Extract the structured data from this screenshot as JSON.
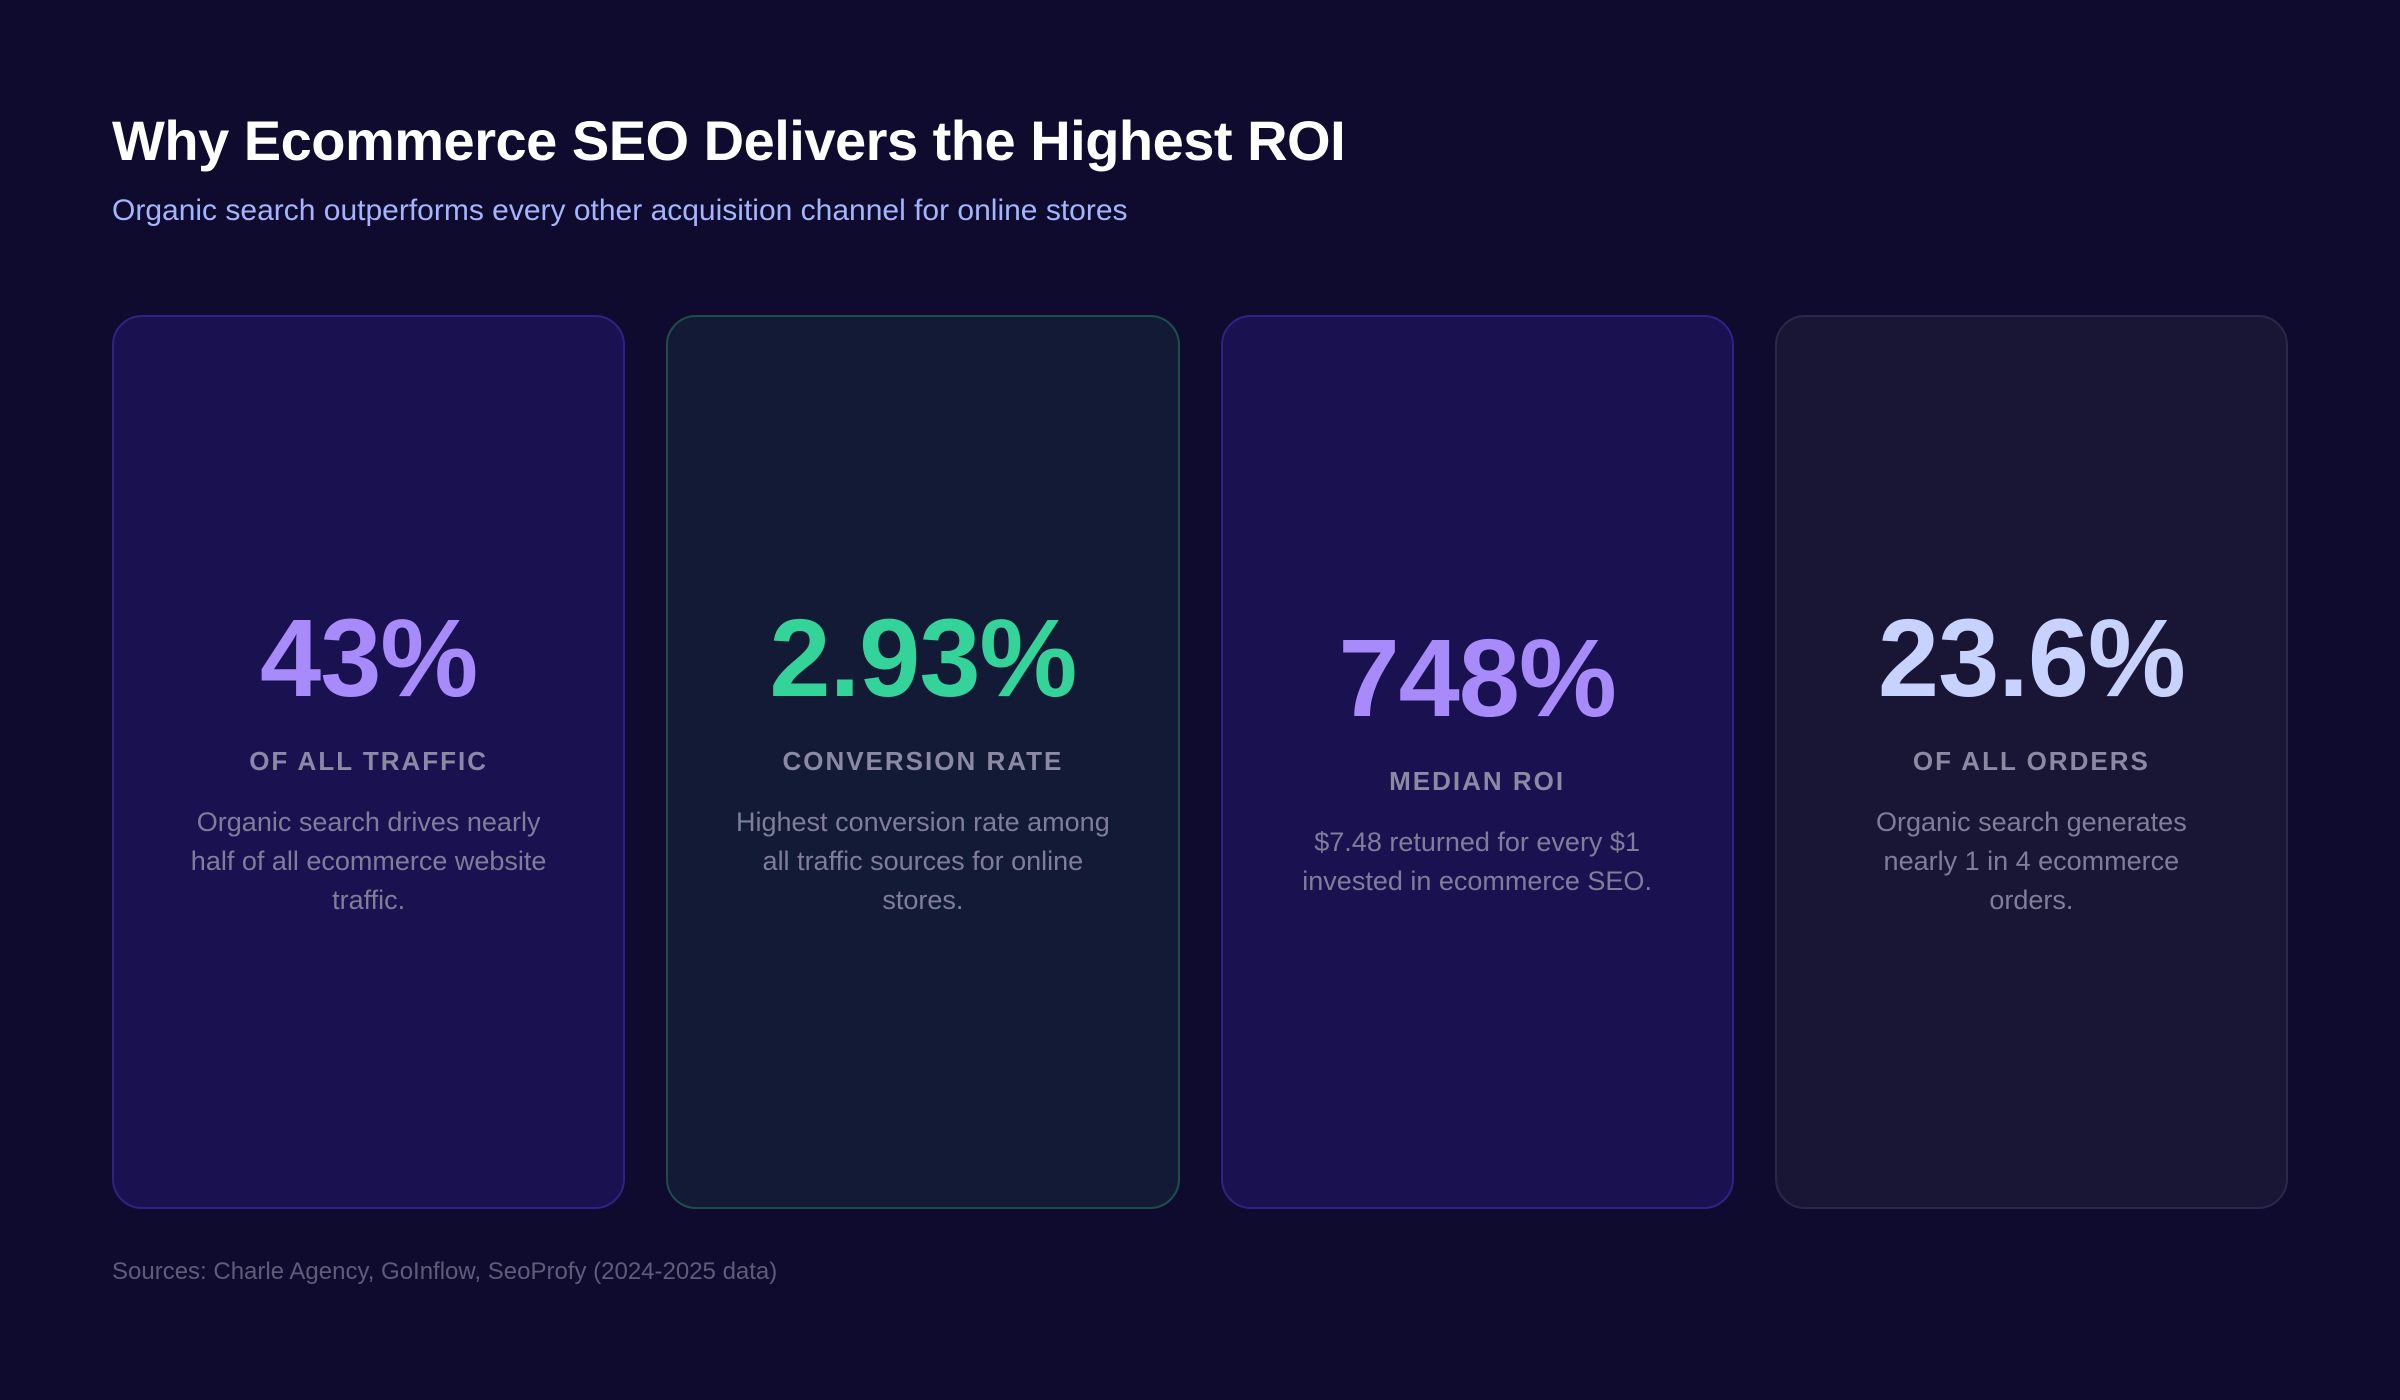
{
  "header": {
    "title": "Why Ecommerce SEO Delivers the Highest ROI",
    "subtitle": "Organic search outperforms every other acquisition channel for online stores"
  },
  "chart_data": {
    "type": "table",
    "title": "Why Ecommerce SEO Delivers the Highest ROI",
    "subtitle": "Organic search outperforms every other acquisition channel for online stores",
    "cards": [
      {
        "value": "43%",
        "label": "OF ALL TRAFFIC",
        "description": "Organic search drives nearly half of all ecommerce website traffic.",
        "color": "#a78bfa",
        "bg": "#1a1150",
        "border": "#2d2385"
      },
      {
        "value": "2.93%",
        "label": "CONVERSION RATE",
        "description": "Highest conversion rate among all traffic sources for online stores.",
        "color": "#34d399",
        "bg": "#131a36",
        "border": "#1e4d4c"
      },
      {
        "value": "748%",
        "label": "MEDIAN ROI",
        "description": "$7.48 returned for every $1 invested in ecommerce SEO.",
        "color": "#a78bfa",
        "bg": "#1a1150",
        "border": "#2d2385"
      },
      {
        "value": "23.6%",
        "label": "OF ALL ORDERS",
        "description": "Organic search generates nearly 1 in 4 ecommerce orders.",
        "color": "#c7d2fe",
        "bg": "#181535",
        "border": "#2b2748"
      }
    ]
  },
  "footer": {
    "sources": "Sources: Charle Agency, GoInflow, SeoProfy (2024-2025 data)"
  },
  "colors": {
    "background": "#0f0b2e",
    "subtitle": "#a5b4fc"
  }
}
